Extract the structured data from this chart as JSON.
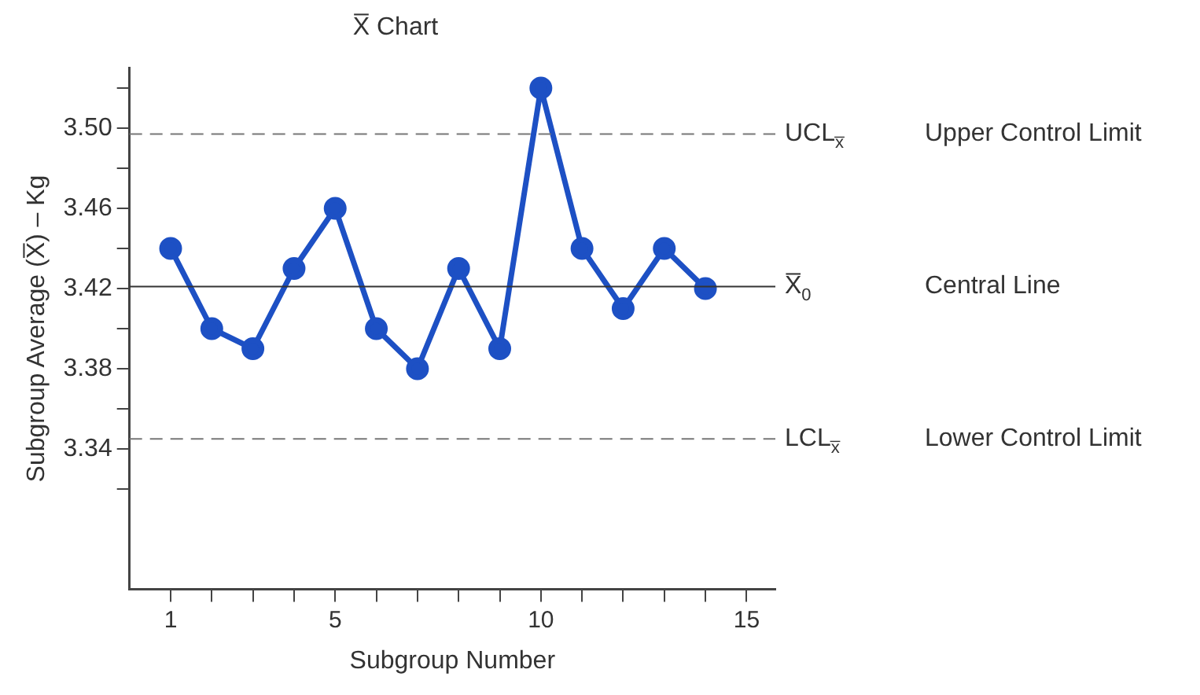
{
  "chart_data": {
    "type": "line",
    "title": "X̅ Chart",
    "xlabel": "Subgroup Number",
    "ylabel": "Subgroup Average (X̅) – Kg",
    "x": [
      1,
      2,
      3,
      4,
      5,
      6,
      7,
      8,
      9,
      10,
      11,
      12,
      13,
      14
    ],
    "series": [
      {
        "color": "#1d50c4",
        "values": [
          3.44,
          3.4,
          3.39,
          3.43,
          3.46,
          3.4,
          3.38,
          3.43,
          3.39,
          3.52,
          3.44,
          3.41,
          3.44,
          3.42
        ]
      }
    ],
    "xlim": [
      0,
      15.7
    ],
    "xticks": [
      1,
      {
        "value": 2,
        "label": null
      },
      {
        "value": 3,
        "label": null
      },
      {
        "value": 4,
        "label": null
      },
      5,
      {
        "value": 6,
        "label": null
      },
      {
        "value": 7,
        "label": null
      },
      {
        "value": 8,
        "label": null
      },
      {
        "value": 9,
        "label": null
      },
      10,
      {
        "value": 11,
        "label": null
      },
      {
        "value": 12,
        "label": null
      },
      {
        "value": 13,
        "label": null
      },
      {
        "value": 14,
        "label": null
      },
      15
    ],
    "ylim": [
      3.27,
      3.53
    ],
    "yticks": [
      {
        "value": 3.32,
        "label": null
      },
      {
        "value": 3.34,
        "label": "3.34"
      },
      {
        "value": 3.36,
        "label": null
      },
      {
        "value": 3.38,
        "label": "3.38"
      },
      {
        "value": 3.4,
        "label": null
      },
      {
        "value": 3.42,
        "label": "3.42"
      },
      {
        "value": 3.44,
        "label": null
      },
      {
        "value": 3.46,
        "label": "3.46"
      },
      {
        "value": 3.48,
        "label": null
      },
      {
        "value": 3.5,
        "label": "3.50"
      },
      {
        "value": 3.52,
        "label": null
      }
    ],
    "ref_lines": [
      {
        "axis": "y",
        "value": 3.497,
        "label": "UCL$_{x̅}$",
        "color": "#777777",
        "line_style": "dashed"
      },
      {
        "axis": "y",
        "value": 3.421,
        "label": "X̅$_{0}$",
        "color": "#333333",
        "line_style": "solid"
      },
      {
        "axis": "y",
        "value": 3.345,
        "label": "LCL$_{x̅}$",
        "color": "#777777",
        "line_style": "dashed"
      }
    ],
    "annotations": [
      "Upper Control Limit",
      "Central Line",
      "Lower Control Limit"
    ],
    "grid": false,
    "legend": false,
    "marker": "circle",
    "line_style": "solid"
  }
}
